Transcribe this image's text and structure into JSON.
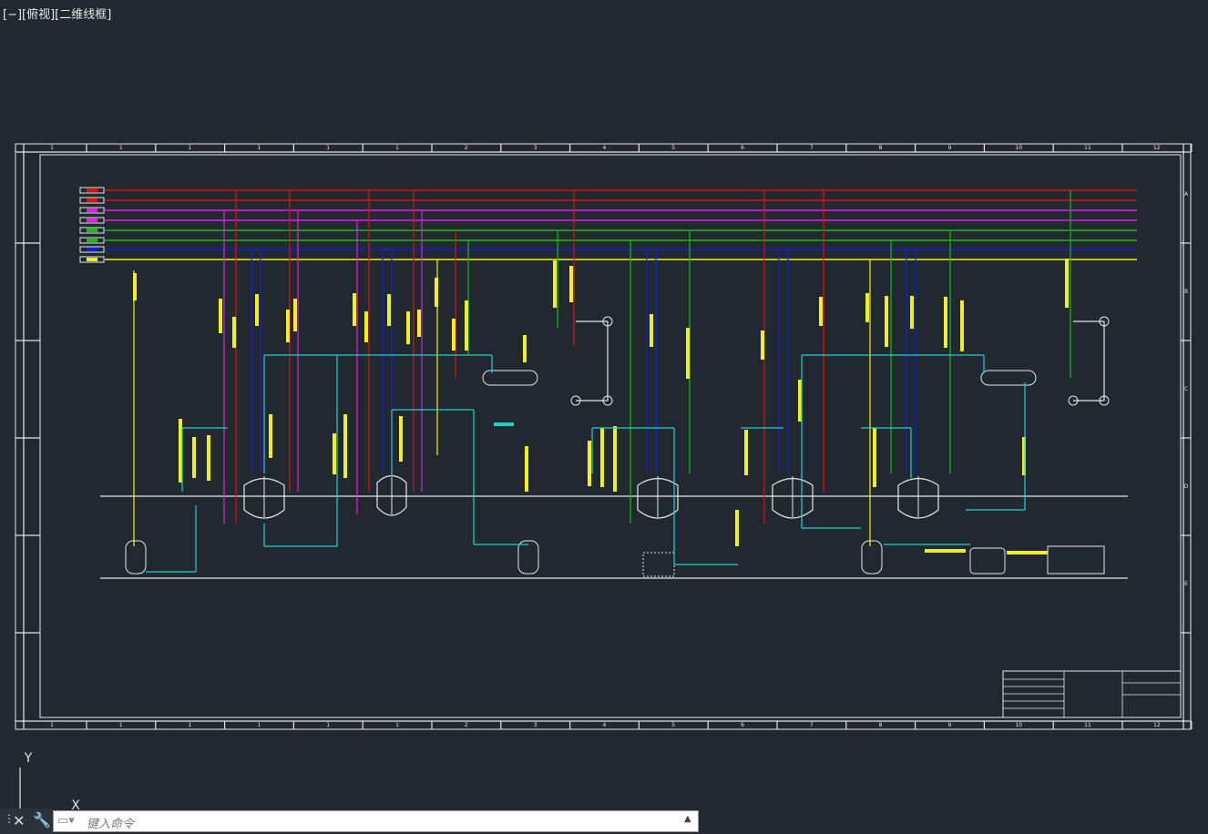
{
  "viewport": {
    "label": "[−][俯视][二维线框]"
  },
  "frame": {
    "column_labels": [
      "1",
      "1",
      "1",
      "1",
      "1",
      "1",
      "2",
      "3",
      "4",
      "5",
      "6",
      "7",
      "8",
      "9",
      "10",
      "11",
      "12"
    ],
    "row_labels": [
      "A",
      "B",
      "C",
      "D",
      "E"
    ]
  },
  "ucs": {
    "y": "Y",
    "x": "X"
  },
  "command_line": {
    "placeholder": "键入命令"
  }
}
